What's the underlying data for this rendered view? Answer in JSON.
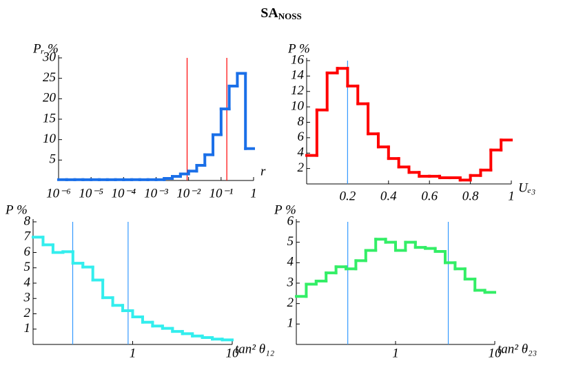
{
  "title": "SA",
  "title_sub": "NOSS",
  "chart_data": [
    {
      "type": "histogram",
      "y_label": "Pᵣ %",
      "x_label": "r",
      "xscale": "log",
      "color": "#1a6fe8",
      "xlim": [
        1e-06,
        1
      ],
      "ylim": [
        0,
        30
      ],
      "xticks": [
        {
          "value": 1e-06,
          "label": "10⁻⁶"
        },
        {
          "value": 1e-05,
          "label": "10⁻⁵"
        },
        {
          "value": 0.0001,
          "label": "10⁻⁴"
        },
        {
          "value": 0.001,
          "label": "10⁻³"
        },
        {
          "value": 0.01,
          "label": "10⁻²"
        },
        {
          "value": 0.1,
          "label": "10⁻¹"
        },
        1
      ],
      "yticks": [
        5,
        10,
        15,
        20,
        25,
        30
      ],
      "bins": [
        1e-06,
        1.778e-06,
        3.162e-06,
        5.623e-06,
        1e-05,
        1.778e-05,
        3.162e-05,
        5.623e-05,
        0.0001,
        0.0001778,
        0.0003162,
        0.0005623,
        0.001,
        0.001778,
        0.003162,
        0.005623,
        0.01,
        0.01778,
        0.03162,
        0.05623,
        0.1,
        0.1778,
        0.3162,
        0.5623,
        1
      ],
      "values": [
        0.2,
        0.2,
        0.2,
        0.2,
        0.2,
        0.2,
        0.2,
        0.2,
        0.2,
        0.2,
        0.2,
        0.2,
        0.2,
        0.5,
        1.0,
        1.6,
        2.3,
        3.7,
        6.3,
        11.2,
        17.5,
        23.1,
        26.2,
        7.8
      ],
      "vlines": [
        0.009,
        0.15
      ],
      "vline_color": "#ff0000"
    },
    {
      "type": "histogram",
      "y_label": "P %",
      "x_label": "Uₑ₃",
      "xscale": "linear",
      "color": "#ff0000",
      "xlim": [
        0,
        1
      ],
      "ylim": [
        0,
        16
      ],
      "xticks": [
        0.2,
        0.4,
        0.6,
        0.8,
        1
      ],
      "yticks": [
        2,
        4,
        6,
        8,
        10,
        12,
        14,
        16
      ],
      "bins": [
        0,
        0.05,
        0.1,
        0.15,
        0.2,
        0.25,
        0.3,
        0.35,
        0.4,
        0.45,
        0.5,
        0.55,
        0.6,
        0.65,
        0.7,
        0.75,
        0.8,
        0.85,
        0.9,
        0.95,
        1
      ],
      "values": [
        3.7,
        9.6,
        14.4,
        15.0,
        12.7,
        10.4,
        6.5,
        4.8,
        3.3,
        2.2,
        1.5,
        1.0,
        1.0,
        0.8,
        0.8,
        0.5,
        1.1,
        1.8,
        4.4,
        5.7
      ],
      "vlines": [
        0.2
      ],
      "vline_color": "#3399ff"
    },
    {
      "type": "histogram",
      "y_label": "P %",
      "x_label": "tan² θ₁₂",
      "xscale": "log",
      "color": "#33eeee",
      "xlim": [
        0.1,
        10
      ],
      "ylim": [
        0,
        8
      ],
      "xticks": [
        1,
        10
      ],
      "yticks": [
        1,
        2,
        3,
        4,
        5,
        6,
        7,
        8
      ],
      "bins": [
        0.1,
        0.1259,
        0.1585,
        0.1995,
        0.2512,
        0.3162,
        0.3981,
        0.5012,
        0.631,
        0.7943,
        1,
        1.259,
        1.585,
        1.995,
        2.512,
        3.162,
        3.981,
        5.012,
        6.31,
        7.943,
        10
      ],
      "values": [
        7.0,
        6.5,
        6.0,
        6.05,
        5.3,
        5.05,
        4.2,
        3.05,
        2.55,
        2.2,
        1.8,
        1.45,
        1.2,
        1.05,
        0.85,
        0.7,
        0.55,
        0.45,
        0.35,
        0.3
      ],
      "vlines": [
        0.25,
        0.9
      ],
      "vline_color": "#3399ff"
    },
    {
      "type": "histogram",
      "y_label": "P %",
      "x_label": "tan² θ₂₃",
      "xscale": "log",
      "color": "#33ee66",
      "xlim": [
        0.1,
        10
      ],
      "ylim": [
        0,
        6
      ],
      "xticks": [
        1,
        10
      ],
      "yticks": [
        1,
        2,
        3,
        4,
        5,
        6
      ],
      "bins": [
        0.1,
        0.1259,
        0.1585,
        0.1995,
        0.2512,
        0.3162,
        0.3981,
        0.5012,
        0.631,
        0.7943,
        1,
        1.259,
        1.585,
        1.995,
        2.512,
        3.162,
        3.981,
        5.012,
        6.31,
        7.943,
        10
      ],
      "values": [
        2.35,
        2.95,
        3.1,
        3.5,
        3.8,
        3.7,
        4.1,
        4.6,
        5.15,
        5.0,
        4.6,
        5.0,
        4.75,
        4.7,
        4.55,
        4.0,
        3.7,
        3.2,
        2.65,
        2.55
      ],
      "vlines": [
        0.33,
        3.4
      ],
      "vline_color": "#3399ff"
    }
  ]
}
